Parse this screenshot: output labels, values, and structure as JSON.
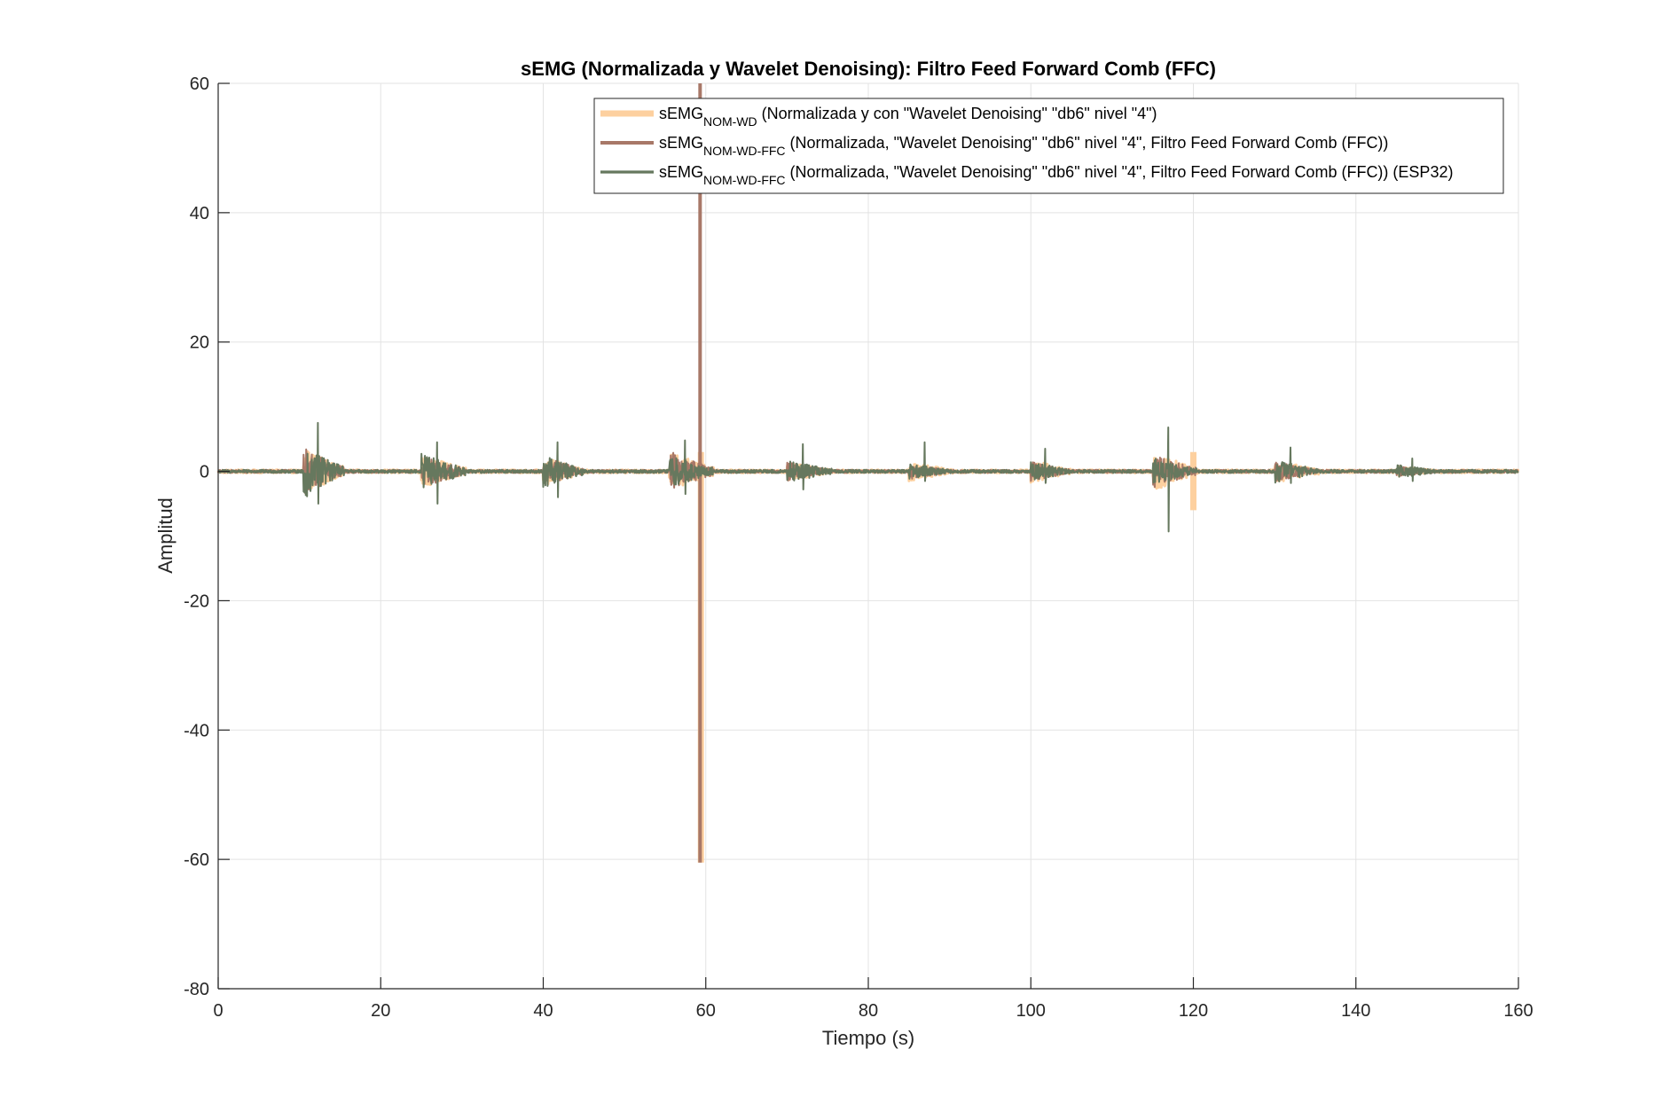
{
  "chart_data": {
    "type": "line",
    "title": "sEMG (Normalizada y Wavelet Denoising): Filtro Feed Forward Comb (FFC)",
    "xlabel": "Tiempo (s)",
    "ylabel": "Amplitud",
    "xlim": [
      0,
      160
    ],
    "ylim": [
      -80,
      60
    ],
    "xticks": [
      0,
      20,
      40,
      60,
      80,
      100,
      120,
      140,
      160
    ],
    "yticks": [
      -80,
      -60,
      -40,
      -20,
      0,
      20,
      40,
      60
    ],
    "xtick_labels": [
      "0",
      "20",
      "40",
      "60",
      "80",
      "100",
      "120",
      "140",
      "160"
    ],
    "ytick_labels": [
      "-80",
      "-60",
      "-40",
      "-20",
      "0",
      "20",
      "40",
      "60"
    ],
    "grid": true,
    "legend_position": "top-right",
    "series": [
      {
        "name": "sEMG",
        "name_sub": "NOM-WD",
        "name_rest": " (Normalizada y con \"Wavelet Denoising\" \"db6\" nivel \"4\")",
        "color": "#FDD09F",
        "bursts": [
          {
            "x": [
              10.5,
              15.5
            ],
            "amp": 3.5
          },
          {
            "x": [
              25,
              30.5
            ],
            "amp": 2.5
          },
          {
            "x": [
              40,
              45
            ],
            "amp": 2.2
          },
          {
            "x": [
              55.5,
              61
            ],
            "amp": 3.0
          },
          {
            "x": [
              70,
              75.5
            ],
            "amp": 1.5
          },
          {
            "x": [
              85,
              90.5
            ],
            "amp": 1.5
          },
          {
            "x": [
              100,
              105
            ],
            "amp": 1.8
          },
          {
            "x": [
              115,
              120.5
            ],
            "amp": 3.0
          },
          {
            "x": [
              130,
              135.5
            ],
            "amp": 1.8
          },
          {
            "x": [
              145,
              150.5
            ],
            "amp": 0.8
          }
        ],
        "spikes": [
          {
            "x": 59.4,
            "y": [
              -60.5,
              3
            ]
          },
          {
            "x": 120.0,
            "y": [
              -6,
              3
            ]
          }
        ]
      },
      {
        "name": "sEMG",
        "name_sub": "NOM-WD-FFC",
        "name_rest": " (Normalizada, \"Wavelet Denoising\" \"db6\" nivel \"4\", Filtro Feed Forward Comb (FFC))",
        "color": "#A87868",
        "bursts": [
          {
            "x": [
              10.5,
              15.5
            ],
            "amp": 3.5
          },
          {
            "x": [
              25,
              30.5
            ],
            "amp": 2.5
          },
          {
            "x": [
              40,
              45
            ],
            "amp": 2.2
          },
          {
            "x": [
              55.5,
              61
            ],
            "amp": 3.0
          },
          {
            "x": [
              70,
              75.5
            ],
            "amp": 1.5
          },
          {
            "x": [
              85,
              90.5
            ],
            "amp": 1.2
          },
          {
            "x": [
              100,
              105
            ],
            "amp": 1.5
          },
          {
            "x": [
              115,
              120.5
            ],
            "amp": 2.5
          },
          {
            "x": [
              130,
              135.5
            ],
            "amp": 1.5
          },
          {
            "x": [
              145,
              150.5
            ],
            "amp": 0.8
          }
        ],
        "spikes": [
          {
            "x": 59.3,
            "y": [
              -60.5,
              60
            ]
          }
        ]
      },
      {
        "name": "sEMG",
        "name_sub": "NOM-WD-FFC",
        "name_rest": " (Normalizada, \"Wavelet Denoising\" \"db6\" nivel \"4\", Filtro Feed Forward Comb (FFC)) (ESP32)",
        "color": "#66785E",
        "bursts": [
          {
            "x": [
              10.5,
              15.5
            ],
            "amp": 4.0,
            "max": 7.5,
            "min": -5
          },
          {
            "x": [
              25,
              30.5
            ],
            "amp": 2.8,
            "max": 4.5,
            "min": -5
          },
          {
            "x": [
              40,
              45
            ],
            "amp": 2.5,
            "max": 4.5,
            "min": -4
          },
          {
            "x": [
              55.5,
              61
            ],
            "amp": 2.5,
            "max": 4.8,
            "min": -3.5
          },
          {
            "x": [
              70,
              75.5
            ],
            "amp": 1.8,
            "max": 4.2,
            "min": -2.8
          },
          {
            "x": [
              85,
              90.5
            ],
            "amp": 1.2,
            "max": 4.5,
            "min": -1.5
          },
          {
            "x": [
              100,
              105
            ],
            "amp": 1.5,
            "max": 3.5,
            "min": -1.8
          },
          {
            "x": [
              115,
              120.5
            ],
            "amp": 2.0,
            "max": 6.8,
            "min": -9.3
          },
          {
            "x": [
              130,
              135.5
            ],
            "amp": 1.8,
            "max": 3.7,
            "min": -1.8
          },
          {
            "x": [
              145,
              150.5
            ],
            "amp": 1.0,
            "max": 2.0,
            "min": -1.5
          }
        ],
        "spikes": []
      }
    ]
  }
}
